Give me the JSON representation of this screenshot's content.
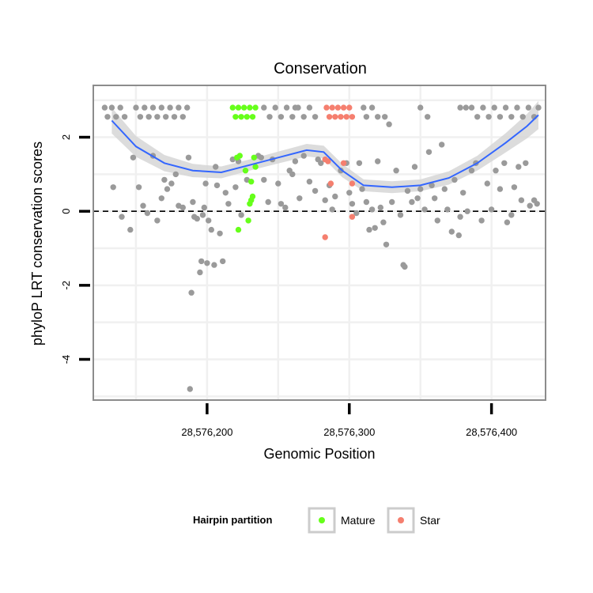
{
  "chart_data": {
    "type": "scatter",
    "title": "Conservation",
    "xlabel": "Genomic Position",
    "ylabel": "phyloP LRT conservation scores",
    "xlim": [
      28576120,
      28576438
    ],
    "ylim": [
      -5.1,
      3.4
    ],
    "x_ticks": [
      28576200,
      28576300,
      28576400
    ],
    "x_tick_labels": [
      "28,576,200",
      "28,576,300",
      "28,576,400"
    ],
    "y_ticks": [
      2,
      0,
      -2,
      -4
    ],
    "y_tick_labels": [
      "2",
      "0",
      "-2",
      "-4"
    ],
    "reference_line": {
      "y": 0,
      "style": "dashed"
    },
    "colors": {
      "background": "#9a9a9a",
      "Mature": "#66ff1a",
      "Star": "#f57f6f",
      "smooth": "#3366ff",
      "ribbon": "#d6d6d6"
    },
    "legend": {
      "title": "Hairpin partition",
      "position": "bottom",
      "entries": [
        {
          "label": "Mature",
          "color_key": "Mature"
        },
        {
          "label": "Star",
          "color_key": "Star"
        }
      ]
    },
    "smooth_curve": {
      "x": [
        28576133,
        28576150,
        28576170,
        28576190,
        28576210,
        28576230,
        28576250,
        28576270,
        28576282,
        28576295,
        28576310,
        28576330,
        28576350,
        28576370,
        28576390,
        28576410,
        28576425,
        28576433
      ],
      "y": [
        2.45,
        1.75,
        1.3,
        1.1,
        1.05,
        1.25,
        1.45,
        1.65,
        1.6,
        1.1,
        0.7,
        0.65,
        0.7,
        0.9,
        1.3,
        1.85,
        2.3,
        2.6
      ],
      "se": [
        0.35,
        0.28,
        0.22,
        0.18,
        0.16,
        0.15,
        0.16,
        0.17,
        0.17,
        0.18,
        0.16,
        0.16,
        0.16,
        0.18,
        0.2,
        0.26,
        0.33,
        0.38
      ]
    },
    "series": [
      {
        "name": "Background",
        "color_key": "background",
        "points": [
          [
            28576128,
            2.8
          ],
          [
            28576130,
            2.55
          ],
          [
            28576133,
            2.8
          ],
          [
            28576136,
            2.55
          ],
          [
            28576139,
            2.8
          ],
          [
            28576142,
            2.55
          ],
          [
            28576150,
            2.8
          ],
          [
            28576153,
            2.55
          ],
          [
            28576156,
            2.8
          ],
          [
            28576159,
            2.55
          ],
          [
            28576162,
            2.8
          ],
          [
            28576165,
            2.55
          ],
          [
            28576168,
            2.8
          ],
          [
            28576171,
            2.55
          ],
          [
            28576174,
            2.8
          ],
          [
            28576177,
            2.55
          ],
          [
            28576180,
            2.8
          ],
          [
            28576183,
            2.55
          ],
          [
            28576186,
            2.8
          ],
          [
            28576240,
            2.8
          ],
          [
            28576244,
            2.55
          ],
          [
            28576248,
            2.8
          ],
          [
            28576252,
            2.55
          ],
          [
            28576256,
            2.8
          ],
          [
            28576260,
            2.55
          ],
          [
            28576264,
            2.8
          ],
          [
            28576268,
            2.55
          ],
          [
            28576272,
            2.8
          ],
          [
            28576276,
            2.55
          ],
          [
            28576310,
            2.8
          ],
          [
            28576312,
            2.55
          ],
          [
            28576316,
            2.8
          ],
          [
            28576320,
            2.55
          ],
          [
            28576325,
            2.55
          ],
          [
            28576350,
            2.8
          ],
          [
            28576355,
            2.55
          ],
          [
            28576378,
            2.8
          ],
          [
            28576382,
            2.8
          ],
          [
            28576386,
            2.8
          ],
          [
            28576390,
            2.55
          ],
          [
            28576394,
            2.8
          ],
          [
            28576398,
            2.55
          ],
          [
            28576402,
            2.8
          ],
          [
            28576406,
            2.55
          ],
          [
            28576410,
            2.8
          ],
          [
            28576414,
            2.55
          ],
          [
            28576418,
            2.8
          ],
          [
            28576422,
            2.55
          ],
          [
            28576426,
            2.8
          ],
          [
            28576430,
            2.55
          ],
          [
            28576433,
            2.8
          ],
          [
            28576262,
            2.8
          ],
          [
            28576134,
            0.65
          ],
          [
            28576140,
            -0.15
          ],
          [
            28576146,
            -0.5
          ],
          [
            28576148,
            1.45
          ],
          [
            28576152,
            0.65
          ],
          [
            28576155,
            0.15
          ],
          [
            28576158,
            -0.05
          ],
          [
            28576162,
            1.5
          ],
          [
            28576165,
            -0.25
          ],
          [
            28576168,
            0.35
          ],
          [
            28576170,
            0.85
          ],
          [
            28576172,
            0.6
          ],
          [
            28576175,
            0.75
          ],
          [
            28576178,
            1.0
          ],
          [
            28576180,
            0.15
          ],
          [
            28576183,
            0.1
          ],
          [
            28576187,
            1.45
          ],
          [
            28576190,
            0.25
          ],
          [
            28576188,
            -4.8
          ],
          [
            28576189,
            -2.2
          ],
          [
            28576191,
            -0.15
          ],
          [
            28576193,
            -0.2
          ],
          [
            28576195,
            -1.65
          ],
          [
            28576196,
            -1.35
          ],
          [
            28576197,
            -0.1
          ],
          [
            28576198,
            0.1
          ],
          [
            28576199,
            0.75
          ],
          [
            28576200,
            -1.4
          ],
          [
            28576201,
            -0.25
          ],
          [
            28576203,
            -0.5
          ],
          [
            28576205,
            -1.45
          ],
          [
            28576206,
            1.2
          ],
          [
            28576207,
            0.7
          ],
          [
            28576209,
            -0.6
          ],
          [
            28576211,
            -1.35
          ],
          [
            28576213,
            0.5
          ],
          [
            28576215,
            0.2
          ],
          [
            28576218,
            1.4
          ],
          [
            28576220,
            0.65
          ],
          [
            28576222,
            1.35
          ],
          [
            28576224,
            -0.1
          ],
          [
            28576228,
            0.85
          ],
          [
            28576236,
            1.5
          ],
          [
            28576238,
            1.45
          ],
          [
            28576240,
            0.85
          ],
          [
            28576243,
            0.25
          ],
          [
            28576246,
            1.4
          ],
          [
            28576250,
            0.75
          ],
          [
            28576252,
            0.2
          ],
          [
            28576255,
            0.1
          ],
          [
            28576258,
            1.1
          ],
          [
            28576260,
            1.0
          ],
          [
            28576262,
            1.35
          ],
          [
            28576265,
            0.35
          ],
          [
            28576268,
            1.5
          ],
          [
            28576272,
            0.8
          ],
          [
            28576276,
            0.55
          ],
          [
            28576278,
            1.4
          ],
          [
            28576280,
            1.3
          ],
          [
            28576283,
            0.3
          ],
          [
            28576286,
            0.7
          ],
          [
            28576288,
            0.05
          ],
          [
            28576290,
            0.4
          ],
          [
            28576294,
            1.1
          ],
          [
            28576298,
            1.3
          ],
          [
            28576300,
            0.5
          ],
          [
            28576302,
            0.2
          ],
          [
            28576305,
            -0.05
          ],
          [
            28576307,
            1.3
          ],
          [
            28576309,
            0.6
          ],
          [
            28576312,
            0.25
          ],
          [
            28576314,
            -0.5
          ],
          [
            28576316,
            0.05
          ],
          [
            28576318,
            -0.45
          ],
          [
            28576320,
            1.35
          ],
          [
            28576322,
            0.1
          ],
          [
            28576324,
            -0.3
          ],
          [
            28576326,
            -0.9
          ],
          [
            28576328,
            2.35
          ],
          [
            28576330,
            0.25
          ],
          [
            28576333,
            1.1
          ],
          [
            28576336,
            -0.1
          ],
          [
            28576338,
            -1.45
          ],
          [
            28576339,
            -1.5
          ],
          [
            28576341,
            0.55
          ],
          [
            28576344,
            0.25
          ],
          [
            28576346,
            1.2
          ],
          [
            28576348,
            0.35
          ],
          [
            28576350,
            0.6
          ],
          [
            28576353,
            0.05
          ],
          [
            28576356,
            1.6
          ],
          [
            28576358,
            0.7
          ],
          [
            28576360,
            0.35
          ],
          [
            28576362,
            -0.25
          ],
          [
            28576365,
            1.8
          ],
          [
            28576367,
            0.6
          ],
          [
            28576369,
            0.05
          ],
          [
            28576372,
            -0.55
          ],
          [
            28576374,
            0.85
          ],
          [
            28576377,
            -0.65
          ],
          [
            28576378,
            -0.15
          ],
          [
            28576380,
            0.5
          ],
          [
            28576383,
            0.0
          ],
          [
            28576386,
            1.1
          ],
          [
            28576389,
            1.3
          ],
          [
            28576393,
            -0.25
          ],
          [
            28576397,
            0.75
          ],
          [
            28576400,
            0.05
          ],
          [
            28576403,
            1.1
          ],
          [
            28576406,
            0.6
          ],
          [
            28576409,
            1.3
          ],
          [
            28576411,
            -0.3
          ],
          [
            28576414,
            -0.1
          ],
          [
            28576416,
            0.65
          ],
          [
            28576419,
            1.2
          ],
          [
            28576421,
            0.3
          ],
          [
            28576424,
            1.3
          ],
          [
            28576427,
            0.15
          ],
          [
            28576430,
            0.3
          ],
          [
            28576432,
            0.2
          ]
        ]
      },
      {
        "name": "Mature",
        "color_key": "Mature",
        "points": [
          [
            28576218,
            2.8
          ],
          [
            28576220,
            2.55
          ],
          [
            28576222,
            2.8
          ],
          [
            28576224,
            2.55
          ],
          [
            28576226,
            2.8
          ],
          [
            28576228,
            2.55
          ],
          [
            28576230,
            2.8
          ],
          [
            28576232,
            2.55
          ],
          [
            28576234,
            2.8
          ],
          [
            28576221,
            1.45
          ],
          [
            28576223,
            1.5
          ],
          [
            28576227,
            1.1
          ],
          [
            28576233,
            1.45
          ],
          [
            28576234,
            1.2
          ],
          [
            28576231,
            0.8
          ],
          [
            28576232,
            0.4
          ],
          [
            28576231,
            0.3
          ],
          [
            28576230,
            0.2
          ],
          [
            28576229,
            -0.25
          ],
          [
            28576222,
            -0.5
          ]
        ]
      },
      {
        "name": "Star",
        "color_key": "Star",
        "points": [
          [
            28576284,
            2.8
          ],
          [
            28576286,
            2.55
          ],
          [
            28576288,
            2.8
          ],
          [
            28576290,
            2.55
          ],
          [
            28576292,
            2.8
          ],
          [
            28576294,
            2.55
          ],
          [
            28576296,
            2.8
          ],
          [
            28576298,
            2.55
          ],
          [
            28576300,
            2.8
          ],
          [
            28576302,
            2.55
          ],
          [
            28576283,
            1.4
          ],
          [
            28576285,
            1.35
          ],
          [
            28576296,
            1.3
          ],
          [
            28576287,
            0.75
          ],
          [
            28576302,
            0.75
          ],
          [
            28576283,
            -0.7
          ],
          [
            28576302,
            -0.15
          ]
        ]
      }
    ]
  }
}
